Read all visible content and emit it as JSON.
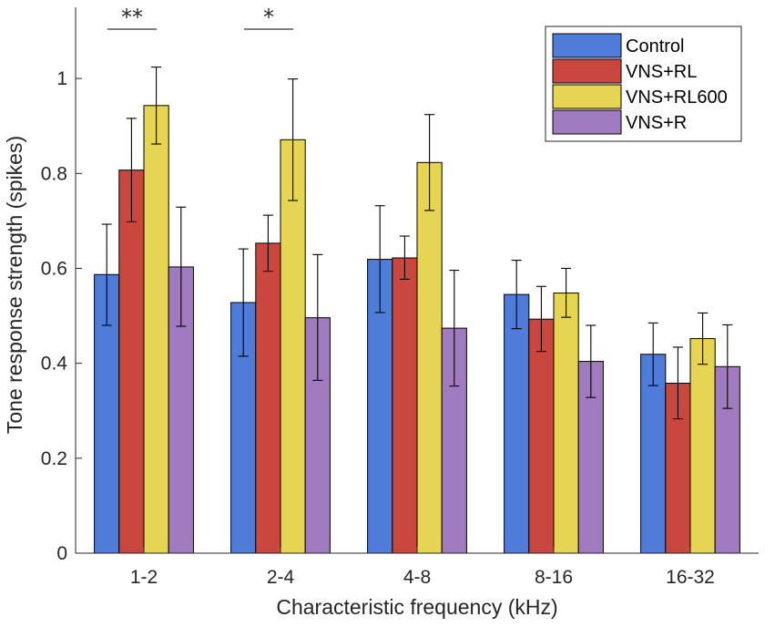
{
  "chart_data": {
    "type": "bar",
    "title": "",
    "xlabel": "Characteristic frequency (kHz)",
    "ylabel": "Tone response strength (spikes)",
    "ylim": [
      0,
      1.15
    ],
    "yticks": [
      0,
      0.2,
      0.4,
      0.6,
      0.8,
      1
    ],
    "ytick_labels": [
      "0",
      "0.2",
      "0.4",
      "0.6",
      "0.8",
      "1"
    ],
    "categories": [
      "1-2",
      "2-4",
      "4-8",
      "8-16",
      "16-32"
    ],
    "series": [
      {
        "name": "Control",
        "color": "#4f7cd8",
        "values": [
          0.587,
          0.528,
          0.619,
          0.545,
          0.419
        ],
        "err_low": [
          0.48,
          0.415,
          0.507,
          0.473,
          0.353
        ],
        "err_high": [
          0.693,
          0.641,
          0.732,
          0.617,
          0.485
        ]
      },
      {
        "name": "VNS+RL",
        "color": "#c9473f",
        "values": [
          0.807,
          0.653,
          0.622,
          0.493,
          0.358
        ],
        "err_low": [
          0.698,
          0.594,
          0.577,
          0.425,
          0.283
        ],
        "err_high": [
          0.916,
          0.712,
          0.668,
          0.562,
          0.434
        ]
      },
      {
        "name": "VNS+RL600",
        "color": "#e6d552",
        "values": [
          0.943,
          0.871,
          0.823,
          0.548,
          0.452
        ],
        "err_low": [
          0.862,
          0.743,
          0.722,
          0.497,
          0.398
        ],
        "err_high": [
          1.024,
          0.999,
          0.924,
          0.6,
          0.506
        ]
      },
      {
        "name": "VNS+R",
        "color": "#a07bc0",
        "values": [
          0.603,
          0.496,
          0.474,
          0.404,
          0.393
        ],
        "err_low": [
          0.478,
          0.364,
          0.352,
          0.328,
          0.305
        ],
        "err_high": [
          0.729,
          0.629,
          0.596,
          0.48,
          0.481
        ]
      }
    ],
    "significance": [
      {
        "category": "1-2",
        "label": "**"
      },
      {
        "category": "2-4",
        "label": "*"
      }
    ],
    "legend": {
      "placement": "top-right"
    },
    "grid": false
  }
}
